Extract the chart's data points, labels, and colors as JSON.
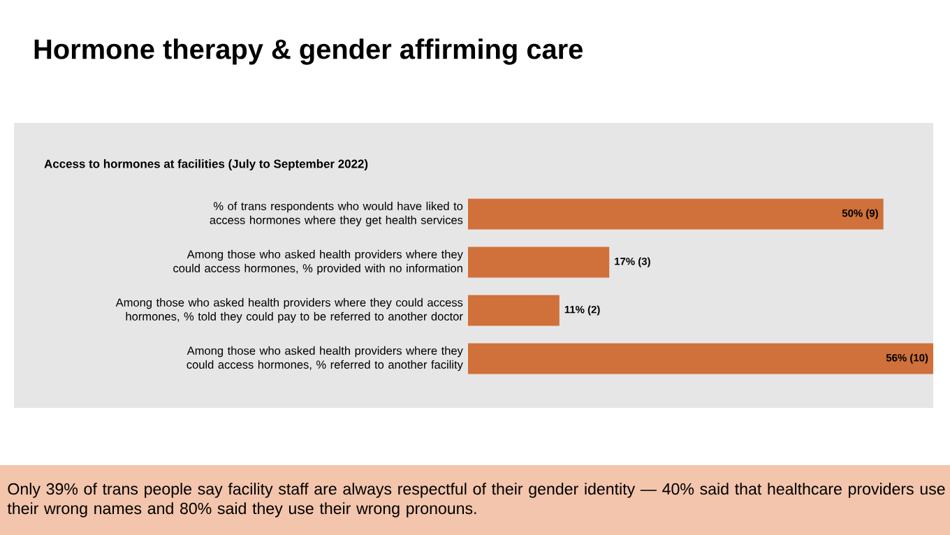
{
  "chart_data": {
    "type": "bar",
    "orientation": "horizontal",
    "title": "Hormone therapy & gender affirming care",
    "subtitle": "Access to hormones at facilities (July to September 2022)",
    "categories": [
      "% of trans respondents who would have liked to access hormones where they get health services",
      "Among those who asked health providers where they could access hormones, % provided with no information",
      "Among those who asked health providers where they could access hormones, % told they could pay to be referred to another doctor",
      "Among those who asked health providers where they could access hormones, % referred to another facility"
    ],
    "values": [
      50,
      17,
      11,
      56
    ],
    "value_labels": [
      "50% (9)",
      "17% (3)",
      "11% (2)",
      "56% (10)"
    ],
    "color": "#d0703a",
    "annotations": [
      "Only 39% of trans people say facility staff are always respectful of their gender identity — 40% said that healthcare providers use their wrong names and 80% said they use their wrong pronouns."
    ]
  }
}
